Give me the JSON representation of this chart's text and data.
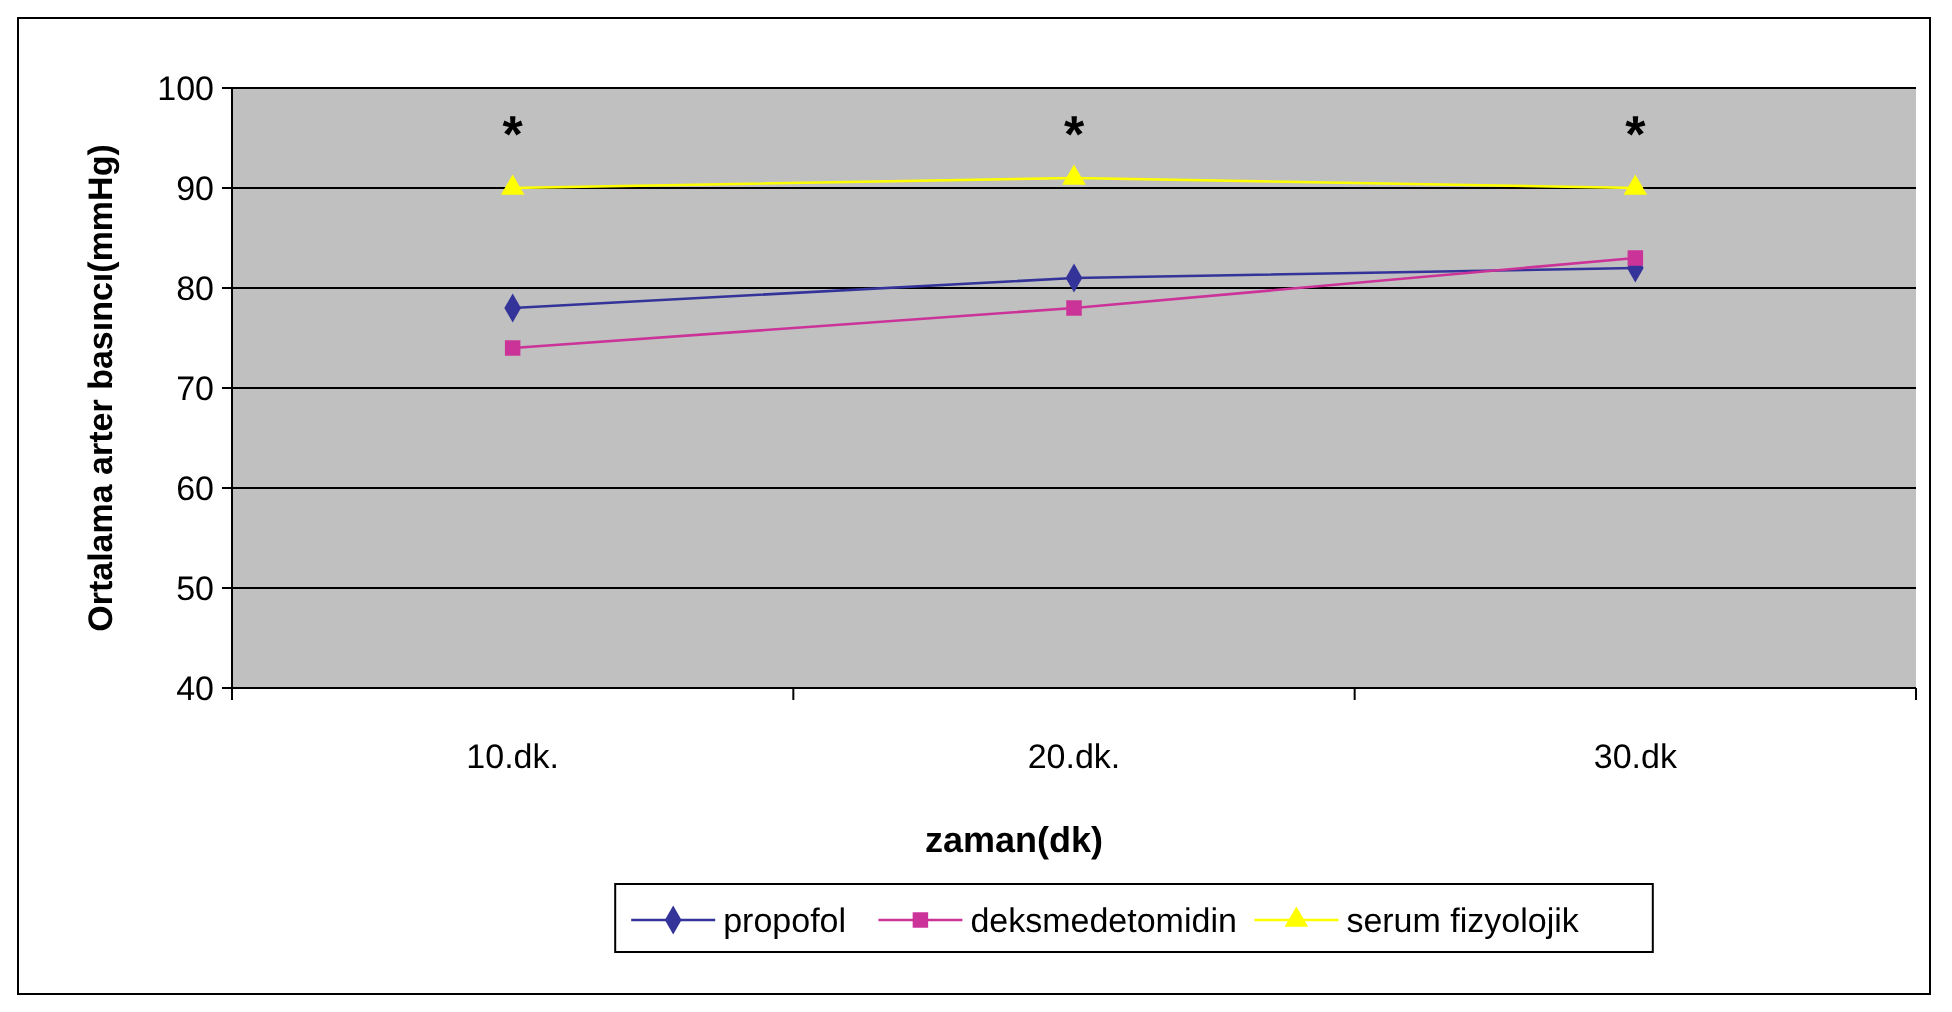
{
  "chart_data": {
    "type": "line",
    "xlabel": "zaman(dk)",
    "ylabel": "Ortalama arter basıncı(mmHg)",
    "categories": [
      "10.dk.",
      "20.dk.",
      "30.dk"
    ],
    "series": [
      {
        "name": "propofol",
        "color": "#333399",
        "marker": "diamond",
        "values": [
          78,
          81,
          82
        ]
      },
      {
        "name": "deksmedetomidin",
        "color": "#cc3399",
        "marker": "square",
        "values": [
          74,
          78,
          83
        ]
      },
      {
        "name": "serum fizyolojik",
        "color": "#ffff00",
        "marker": "triangle",
        "values": [
          90,
          91,
          90
        ]
      }
    ],
    "ylim": [
      40,
      100
    ],
    "yticks": [
      40,
      50,
      60,
      70,
      80,
      90,
      100
    ],
    "grid": "y",
    "legend": "bottom",
    "annotations": [
      "*",
      "*",
      "*"
    ]
  }
}
